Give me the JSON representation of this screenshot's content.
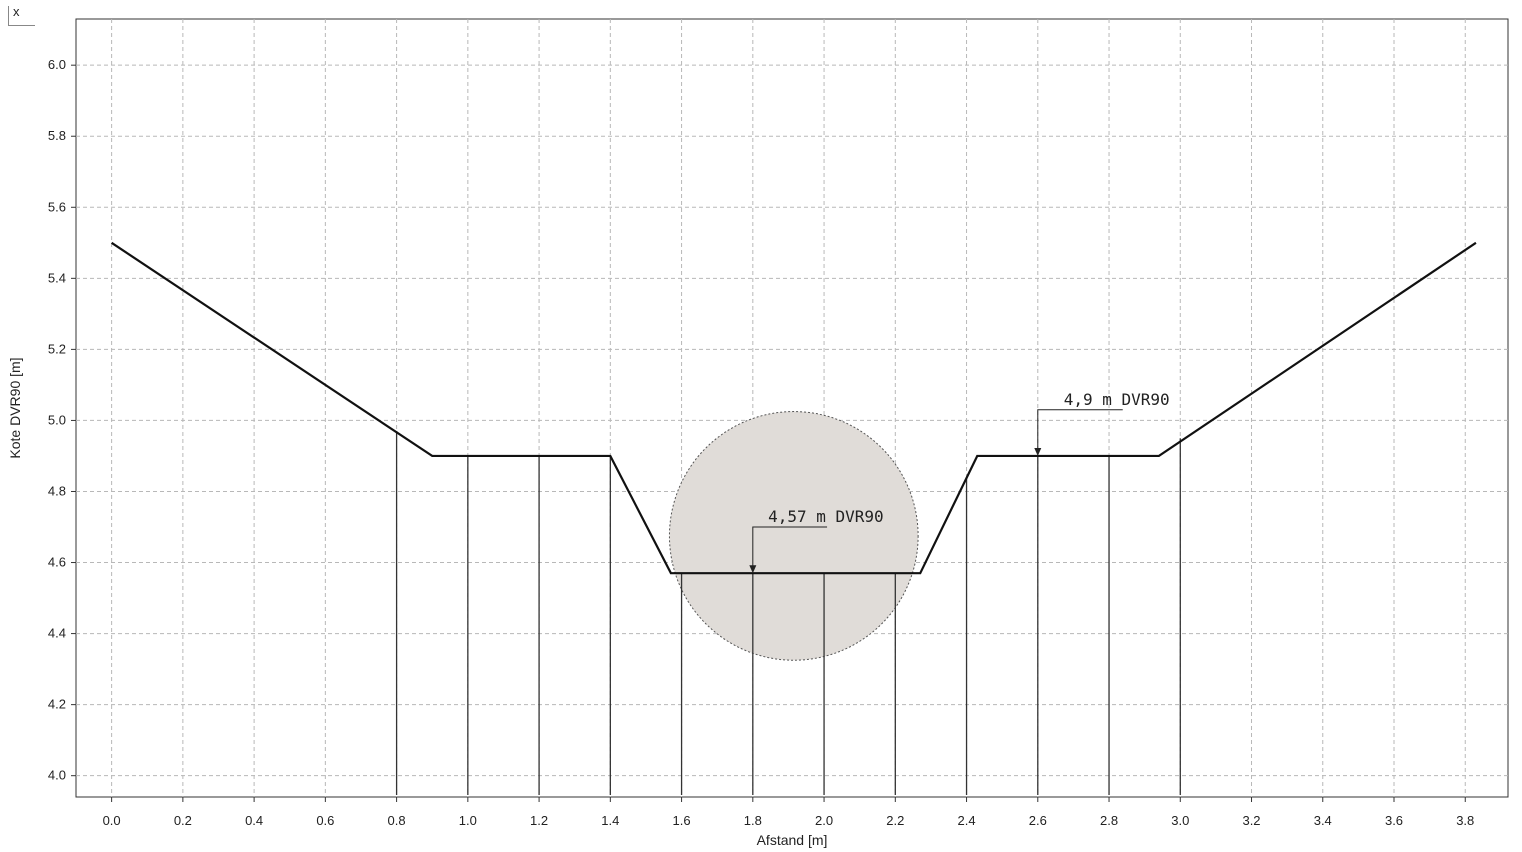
{
  "window": {
    "close_label": "x"
  },
  "chart_data": {
    "type": "line",
    "title": "",
    "xlabel": "Afstand [m]",
    "ylabel": "Kote DVR90 [m]",
    "xlim": [
      -0.1,
      3.92
    ],
    "ylim": [
      3.94,
      6.13
    ],
    "xticks": [
      0.0,
      0.2,
      0.4,
      0.6,
      0.8,
      1.0,
      1.2,
      1.4,
      1.6,
      1.8,
      2.0,
      2.2,
      2.4,
      2.6,
      2.8,
      3.0,
      3.2,
      3.4,
      3.6,
      3.8
    ],
    "yticks": [
      4.0,
      4.2,
      4.4,
      4.6,
      4.8,
      5.0,
      5.2,
      5.4,
      5.6,
      5.8,
      6.0
    ],
    "xtick_labels": [
      "0.0",
      "0.2",
      "0.4",
      "0.6",
      "0.8",
      "1.0",
      "1.2",
      "1.4",
      "1.6",
      "1.8",
      "2.0",
      "2.2",
      "2.4",
      "2.6",
      "2.8",
      "3.0",
      "3.2",
      "3.4",
      "3.6",
      "3.8"
    ],
    "ytick_labels": [
      "4.0",
      "4.2",
      "4.4",
      "4.6",
      "4.8",
      "5.0",
      "5.2",
      "5.4",
      "5.6",
      "5.8",
      "6.0"
    ],
    "grid": true,
    "series": [
      {
        "kind": "profile",
        "x": [
          0.0,
          0.9,
          1.4,
          1.57,
          2.27,
          2.43,
          2.94,
          3.83
        ],
        "y": [
          5.5,
          4.9,
          4.9,
          4.57,
          4.57,
          4.9,
          4.9,
          5.5
        ]
      }
    ],
    "vertical_lines": [
      {
        "x": 0.8,
        "y_top": 4.97
      },
      {
        "x": 1.0,
        "y_top": 4.9
      },
      {
        "x": 1.2,
        "y_top": 4.9
      },
      {
        "x": 1.4,
        "y_top": 4.9
      },
      {
        "x": 1.6,
        "y_top": 4.57
      },
      {
        "x": 1.8,
        "y_top": 4.57
      },
      {
        "x": 2.0,
        "y_top": 4.57
      },
      {
        "x": 2.2,
        "y_top": 4.57
      },
      {
        "x": 2.4,
        "y_top": 4.84
      },
      {
        "x": 2.6,
        "y_top": 4.9
      },
      {
        "x": 2.8,
        "y_top": 4.9
      },
      {
        "x": 3.0,
        "y_top": 4.95
      }
    ],
    "circle": {
      "cx": 1.915,
      "cy": 4.675,
      "r_y": 0.35,
      "fill": "#e0dcd8"
    },
    "annotations": [
      {
        "text": "4,9 m DVR90",
        "x": 2.6,
        "y": 4.9,
        "label_x": 2.67,
        "label_y": 5.03
      },
      {
        "text": "4,57 m DVR90",
        "x": 1.8,
        "y": 4.57,
        "label_x": 1.84,
        "label_y": 4.7
      }
    ]
  }
}
